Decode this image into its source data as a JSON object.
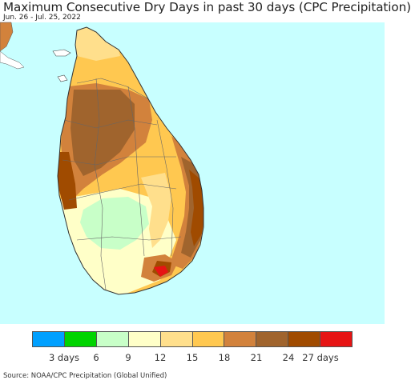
{
  "header": {
    "title": "Maximum Consecutive Dry Days in past 30 days (CPC Precipitation)",
    "date_range": "Jun. 26 - Jul. 25, 2022"
  },
  "map": {
    "ocean_color": "#c8ffff"
  },
  "legend": {
    "colors": [
      "#00a0ff",
      "#00d400",
      "#c8ffc8",
      "#ffffc8",
      "#ffdf8c",
      "#ffc850",
      "#d2823c",
      "#a0642d",
      "#a04b00",
      "#e61414"
    ],
    "tick_labels": [
      "3 days",
      "6",
      "9",
      "12",
      "15",
      "18",
      "21",
      "24",
      "27 days"
    ]
  },
  "footer": {
    "source": "Source: NOAA/CPC Precipitation (Global Unified)"
  }
}
